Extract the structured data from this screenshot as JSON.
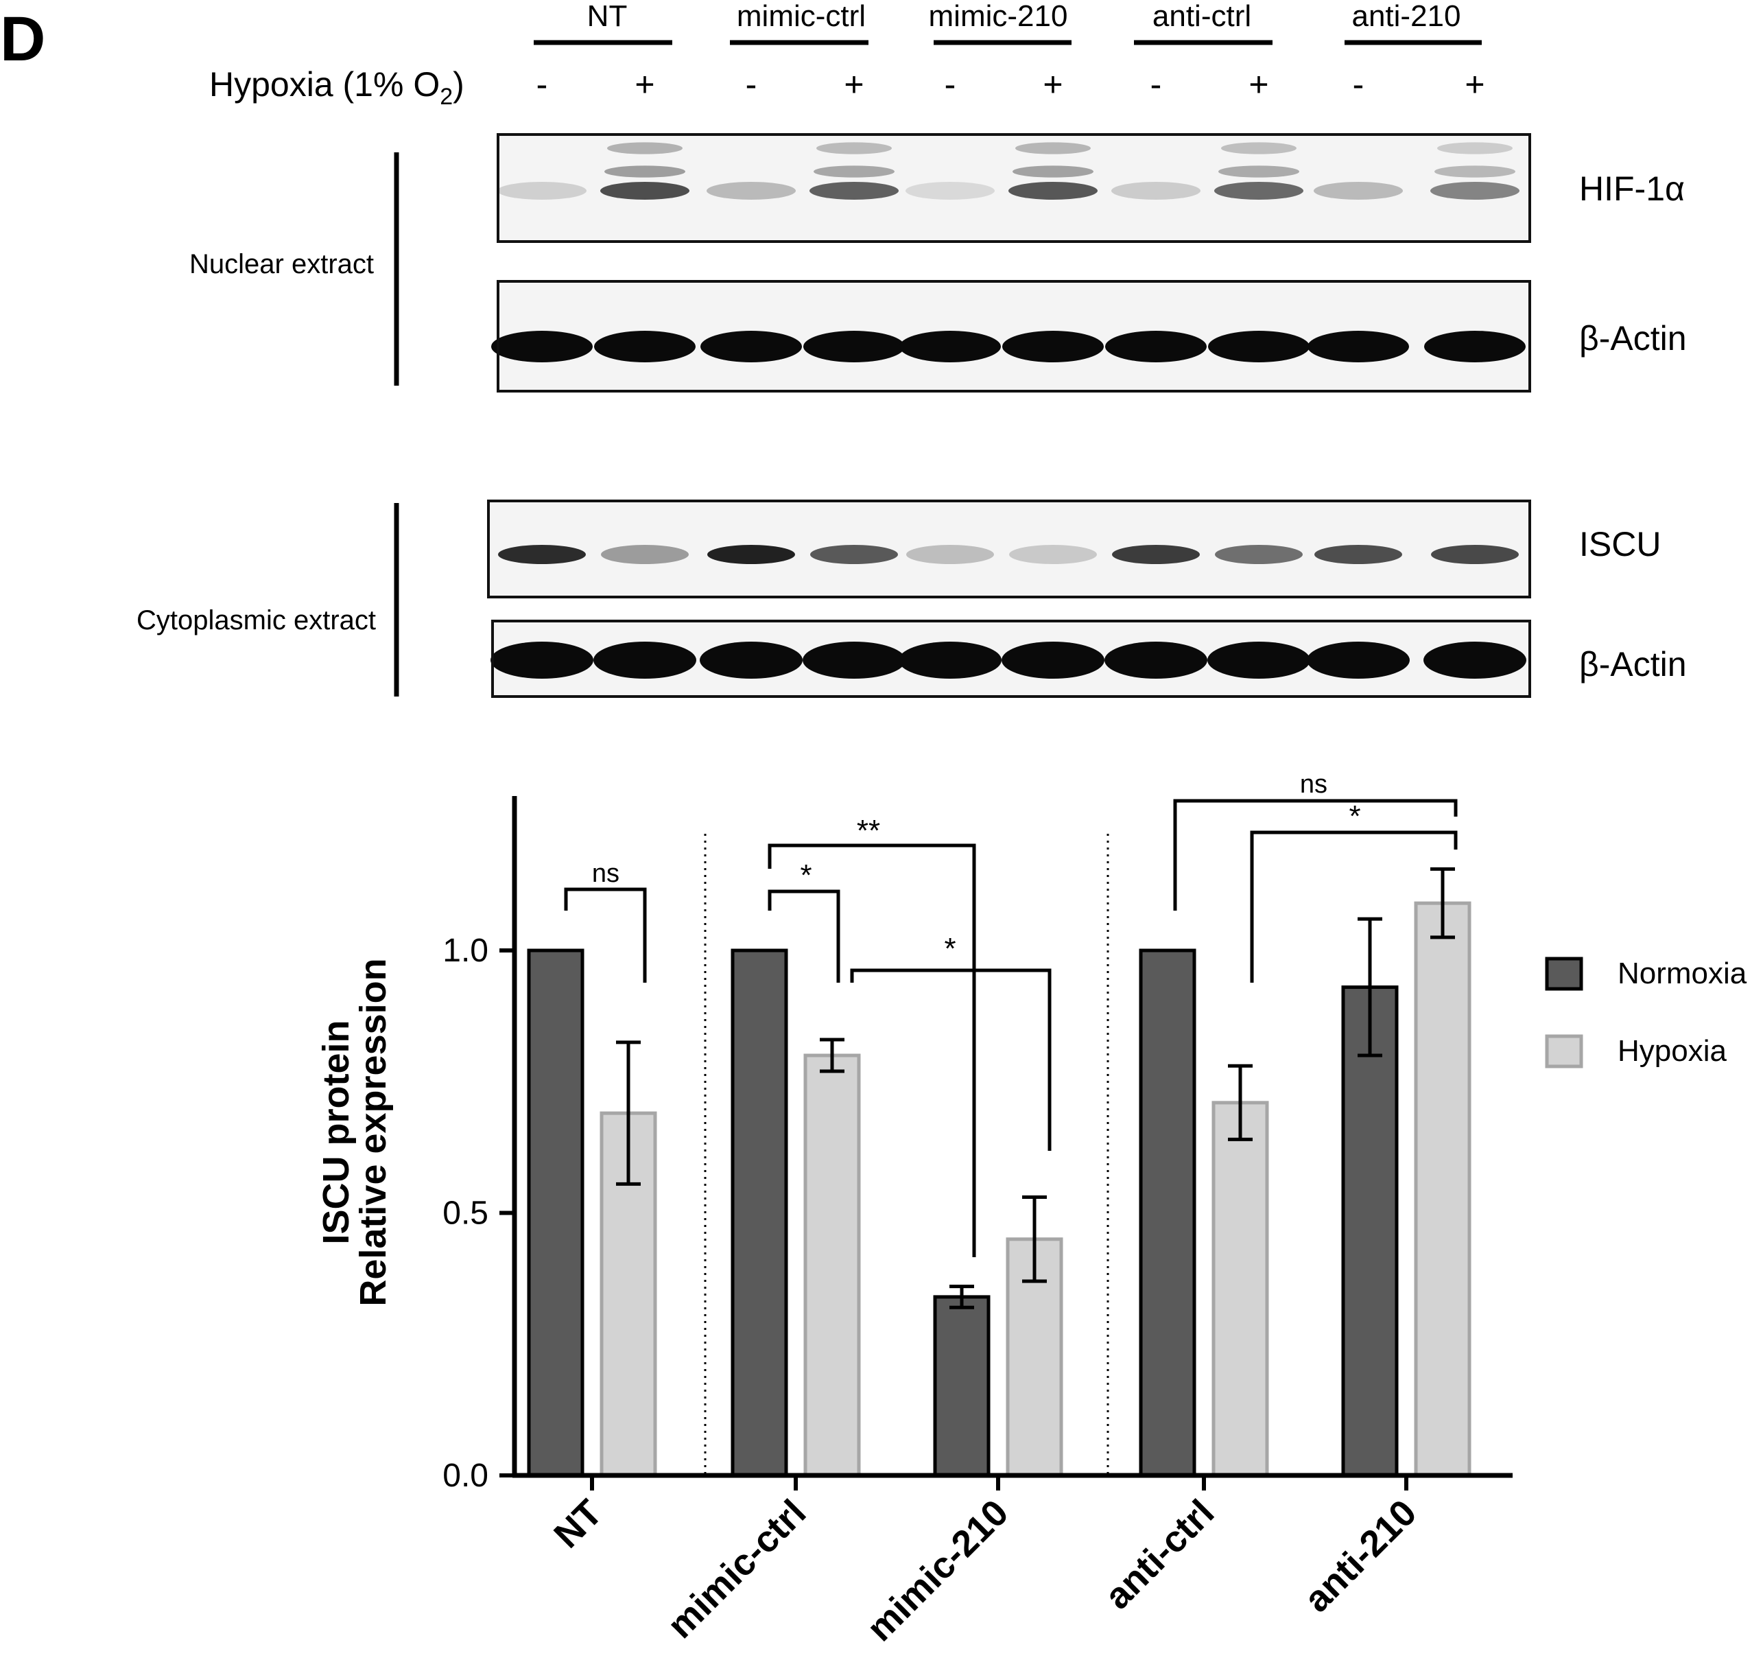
{
  "panel_label": "D",
  "western_blot": {
    "groups": [
      "NT",
      "mimic-ctrl",
      "mimic-210",
      "anti-ctrl",
      "anti-210"
    ],
    "condition_label": "Hypoxia (1% O",
    "condition_subscript": "2",
    "condition_suffix": ")",
    "lane_signs": [
      "-",
      "+",
      "-",
      "+",
      "-",
      "+",
      "-",
      "+",
      "-",
      "+"
    ],
    "sections": [
      {
        "label": "Nuclear extract",
        "blots": [
          {
            "protein": "HIF-1α",
            "lane_intensity": [
              0.12,
              0.7,
              0.22,
              0.62,
              0.08,
              0.66,
              0.14,
              0.58,
              0.22,
              0.46
            ]
          },
          {
            "protein": "β-Actin",
            "lane_intensity": [
              1,
              1,
              1,
              1,
              1,
              1,
              1,
              1,
              1,
              1
            ]
          }
        ]
      },
      {
        "label": "Cytoplasmic extract",
        "blots": [
          {
            "protein": "ISCU",
            "lane_intensity": [
              0.85,
              0.35,
              0.9,
              0.65,
              0.2,
              0.15,
              0.78,
              0.55,
              0.7,
              0.72
            ]
          },
          {
            "protein": "β-Actin",
            "lane_intensity": [
              1,
              1,
              1,
              1,
              1,
              1,
              1,
              1,
              1,
              1
            ]
          }
        ]
      }
    ]
  },
  "chart_data": {
    "type": "bar",
    "title": "",
    "xlabel": "",
    "ylabel_line1": "ISCU protein",
    "ylabel_line2": "Relative expression",
    "categories": [
      "NT",
      "mimic-ctrl",
      "mimic-210",
      "anti-ctrl",
      "anti-210"
    ],
    "ylim": [
      0,
      1.25
    ],
    "yticks": [
      0.0,
      0.5,
      1.0
    ],
    "ytick_labels": [
      "0.0",
      "0.5",
      "1.0"
    ],
    "grid": false,
    "legend_position": "right",
    "series": [
      {
        "name": "Normoxia",
        "color": "#5a5a5a",
        "edge": "#000000",
        "values": [
          1.0,
          1.0,
          0.34,
          1.0,
          0.93
        ],
        "errors": [
          null,
          null,
          0.02,
          null,
          0.13
        ]
      },
      {
        "name": "Hypoxia",
        "color": "#d3d3d3",
        "edge": "#a6a6a6",
        "values": [
          0.69,
          0.8,
          0.45,
          0.71,
          1.09
        ],
        "errors": [
          0.135,
          0.03,
          0.08,
          0.07,
          0.065
        ]
      }
    ],
    "annotations": [
      {
        "label": "ns"
      },
      {
        "label": "*"
      },
      {
        "label": "**"
      },
      {
        "label": "*"
      },
      {
        "label": "ns"
      },
      {
        "label": "*"
      }
    ]
  }
}
